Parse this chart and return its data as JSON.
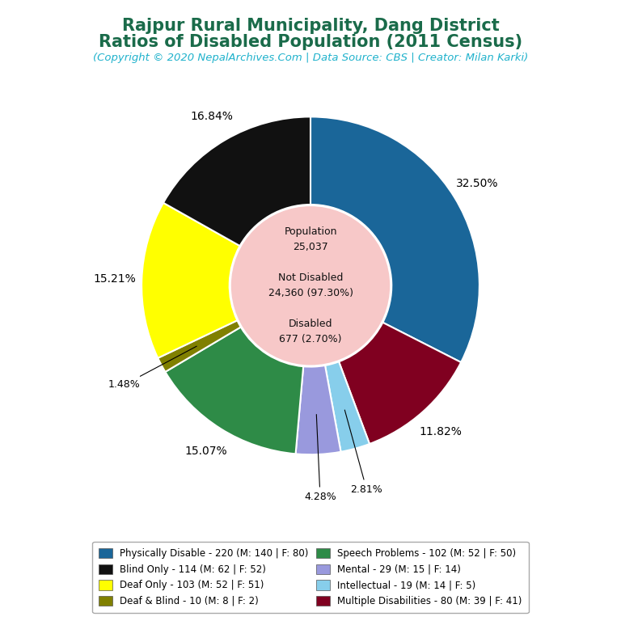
{
  "title_line1": "Rajpur Rural Municipality, Dang District",
  "title_line2": "Ratios of Disabled Population (2011 Census)",
  "subtitle": "(Copyright © 2020 NepalArchives.Com | Data Source: CBS | Creator: Milan Karki)",
  "title_color": "#1a6b4a",
  "subtitle_color": "#20b2cc",
  "total_population": 25037,
  "not_disabled": 24360,
  "not_disabled_pct": 97.3,
  "disabled": 677,
  "disabled_pct": 2.7,
  "center_text_color": "#111111",
  "center_bg_color": "#f7c8c8",
  "slices": [
    {
      "label": "Physically Disable - 220 (M: 140 | F: 80)",
      "short": "Physically Disable",
      "count": 220,
      "pct": 32.5,
      "color": "#1a6699"
    },
    {
      "label": "Multiple Disabilities - 80 (M: 39 | F: 41)",
      "short": "Multiple Disabilities",
      "count": 80,
      "pct": 11.82,
      "color": "#800020"
    },
    {
      "label": "Intellectual - 19 (M: 14 | F: 5)",
      "short": "Intellectual",
      "count": 19,
      "pct": 2.81,
      "color": "#87ceeb"
    },
    {
      "label": "Mental - 29 (M: 15 | F: 14)",
      "short": "Mental",
      "count": 29,
      "pct": 4.28,
      "color": "#9999dd"
    },
    {
      "label": "Speech Problems - 102 (M: 52 | F: 50)",
      "short": "Speech Problems",
      "count": 102,
      "pct": 15.07,
      "color": "#2e8b47"
    },
    {
      "label": "Deaf & Blind - 10 (M: 8 | F: 2)",
      "short": "Deaf & Blind",
      "count": 10,
      "pct": 1.48,
      "color": "#808000"
    },
    {
      "label": "Deaf Only - 103 (M: 52 | F: 51)",
      "short": "Deaf Only",
      "count": 103,
      "pct": 15.21,
      "color": "#ffff00"
    },
    {
      "label": "Blind Only - 114 (M: 62 | F: 52)",
      "short": "Blind Only",
      "count": 114,
      "pct": 16.84,
      "color": "#111111"
    }
  ],
  "legend_entries_col1": [
    {
      "label": "Physically Disable - 220 (M: 140 | F: 80)",
      "color": "#1a6699"
    },
    {
      "label": "Deaf Only - 103 (M: 52 | F: 51)",
      "color": "#ffff00"
    },
    {
      "label": "Speech Problems - 102 (M: 52 | F: 50)",
      "color": "#2e8b47"
    },
    {
      "label": "Intellectual - 19 (M: 14 | F: 5)",
      "color": "#87ceeb"
    }
  ],
  "legend_entries_col2": [
    {
      "label": "Blind Only - 114 (M: 62 | F: 52)",
      "color": "#111111"
    },
    {
      "label": "Deaf & Blind - 10 (M: 8 | F: 2)",
      "color": "#808000"
    },
    {
      "label": "Mental - 29 (M: 15 | F: 14)",
      "color": "#9999dd"
    },
    {
      "label": "Multiple Disabilities - 80 (M: 39 | F: 41)",
      "color": "#800020"
    }
  ],
  "background_color": "#ffffff"
}
